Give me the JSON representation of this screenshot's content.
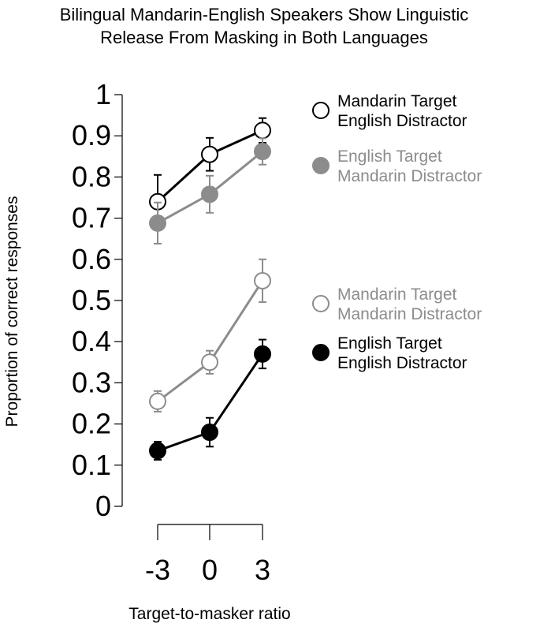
{
  "chart_data": {
    "type": "line",
    "title_lines": [
      "Bilingual Mandarin-English Speakers Show Linguistic",
      "Release From Masking in Both Languages"
    ],
    "xlabel": "Target-to-masker ratio",
    "ylabel": "Proportion of correct responses",
    "x": [
      -3,
      0,
      3
    ],
    "x_ticks": [
      "-3",
      "0",
      "3"
    ],
    "ylim": [
      0,
      1
    ],
    "y_ticks": [
      "0",
      "0.1",
      "0.2",
      "0.3",
      "0.4",
      "0.5",
      "0.6",
      "0.7",
      "0.8",
      "0.9",
      "1"
    ],
    "grid": false,
    "legend_position": "right",
    "series": [
      {
        "name_lines": [
          "Mandarin Target",
          "English Distractor"
        ],
        "values": [
          0.74,
          0.855,
          0.913
        ],
        "errors": [
          0.065,
          0.04,
          0.03
        ],
        "color": "#000000",
        "marker": "open"
      },
      {
        "name_lines": [
          "English Target",
          "Mandarin Distractor"
        ],
        "values": [
          0.688,
          0.758,
          0.862
        ],
        "errors": [
          0.05,
          0.045,
          0.032
        ],
        "color": "#8c8c8c",
        "marker": "filled"
      },
      {
        "name_lines": [
          "Mandarin Target",
          "Mandarin Distractor"
        ],
        "values": [
          0.255,
          0.35,
          0.548
        ],
        "errors": [
          0.025,
          0.028,
          0.052
        ],
        "color": "#8c8c8c",
        "marker": "open"
      },
      {
        "name_lines": [
          "English Target",
          "English Distractor"
        ],
        "values": [
          0.135,
          0.18,
          0.37
        ],
        "errors": [
          0.022,
          0.035,
          0.035
        ],
        "color": "#000000",
        "marker": "filled"
      }
    ]
  }
}
